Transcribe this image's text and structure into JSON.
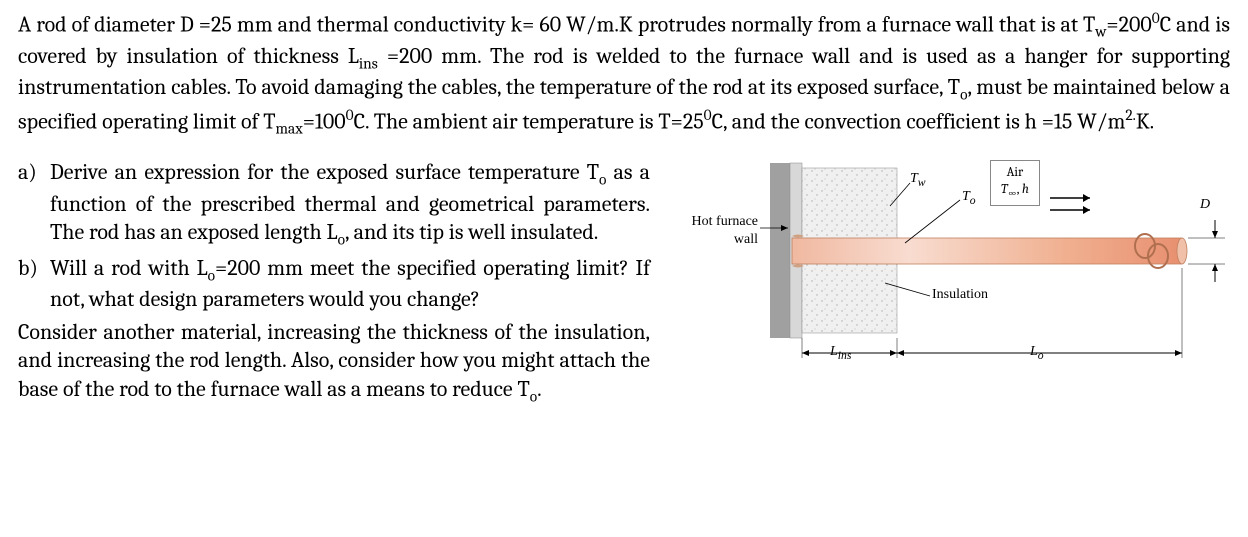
{
  "problem": {
    "text": "A rod of diameter D =25 mm and thermal conductivity k= 60 W/m.K protrudes normally from a furnace wall that is at T<sub>w</sub>=200<sup>0</sup>C and is covered by insulation of thickness L<sub>ins</sub> =200 mm. The rod is welded to the furnace wall and is used as a hanger for supporting instrumentation cables. To avoid damaging the cables, the temperature of the rod at its exposed surface, T<sub>o</sub>, must be maintained below a specified operating limit of T<sub>max</sub>=100<sup>0</sup>C. The ambient air temperature is T=25<sup>0</sup>C, and the convection coefficient is h =15 W/m<sup>2.</sup>K."
  },
  "parts": {
    "a": {
      "label": "a)",
      "text": "Derive an expression for the exposed surface temperature T<sub>o</sub> as a function of the prescribed thermal and geometrical parameters. The rod has an exposed length L<sub>o</sub>, and its tip is well insulated."
    },
    "b": {
      "label": "b)",
      "text": "Will a rod with L<sub>o</sub>=200 mm meet the specified operating limit? If not, what design parameters would you change?"
    },
    "continuation": "Consider another material, increasing the thickness of the insulation, and increasing the rod length. Also, consider how you might attach the base of the rod to the furnace wall as a means to reduce T<sub>o</sub>."
  },
  "diagram": {
    "hot_furnace_wall": "Hot furnace\nwall",
    "air": "Air",
    "t_inf_h": "T<sub>∞</sub>, h",
    "tw": "T<sub>w</sub>",
    "to": "T<sub>o</sub>",
    "insulation": "Insulation",
    "lins": "L<sub>ins</sub>",
    "lo": "L<sub>o</sub>",
    "d": "D",
    "colors": {
      "wall_dark": "#888888",
      "wall_light": "#d0d0d0",
      "insulation": "#e8e8e8",
      "rod_light": "#f8d5c5",
      "rod_dark": "#e89070",
      "cable": "#c08060",
      "arrow": "#000000"
    }
  }
}
